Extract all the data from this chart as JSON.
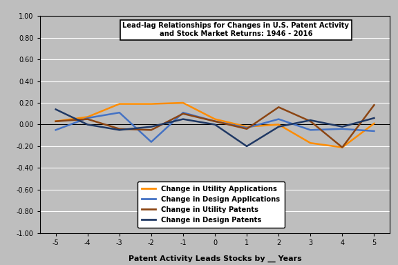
{
  "x": [
    -5,
    -4,
    -3,
    -2,
    -1,
    0,
    1,
    2,
    3,
    4,
    5
  ],
  "utility_applications": [
    0.03,
    0.07,
    0.19,
    0.19,
    0.2,
    0.05,
    -0.02,
    0.0,
    -0.17,
    -0.21,
    0.01
  ],
  "design_applications": [
    -0.05,
    0.06,
    0.11,
    -0.16,
    0.11,
    0.03,
    -0.03,
    0.05,
    -0.05,
    -0.04,
    -0.06
  ],
  "utility_patents": [
    0.03,
    0.05,
    -0.04,
    -0.05,
    0.1,
    0.03,
    -0.04,
    0.16,
    0.03,
    -0.21,
    0.18
  ],
  "design_patents": [
    0.14,
    0.0,
    -0.05,
    -0.02,
    0.05,
    0.0,
    -0.2,
    -0.02,
    0.04,
    -0.02,
    0.06
  ],
  "title_line1": "Lead-lag Relationships for Changes in U.S. Patent Activity",
  "title_line2": "and Stock Market Returns: 1946 - 2016",
  "xlabel": "Patent Activity Leads Stocks by __ Years",
  "xlim": [
    -5.5,
    5.5
  ],
  "ylim": [
    -1.0,
    1.0
  ],
  "yticks": [
    -1.0,
    -0.8,
    -0.6,
    -0.4,
    -0.2,
    0.0,
    0.2,
    0.4,
    0.6,
    0.8,
    1.0
  ],
  "xticks": [
    -5,
    -4,
    -3,
    -2,
    -1,
    0,
    1,
    2,
    3,
    4,
    5
  ],
  "color_utility_app": "#FF8C00",
  "color_design_app": "#4472C4",
  "color_utility_pat": "#8B4513",
  "color_design_pat": "#1F3864",
  "bg_color": "#BEBEBE",
  "legend_labels": [
    "Change in Utility Applications",
    "Change in Design Applications",
    "Change in Utility Patents",
    "Change in Design Patents"
  ],
  "linewidth": 1.8
}
